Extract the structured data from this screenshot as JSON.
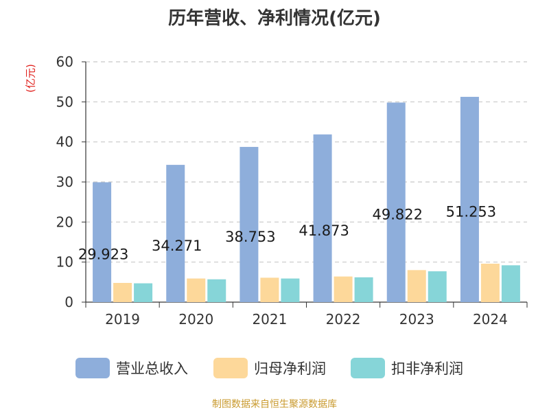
{
  "chart_data": {
    "type": "bar",
    "title": "历年营收、净利情况(亿元)",
    "unit_label": "(亿元)",
    "categories": [
      "2019",
      "2020",
      "2021",
      "2022",
      "2023",
      "2024"
    ],
    "series": [
      {
        "name": "营业总收入",
        "color": "#8eaedb",
        "values": [
          29.923,
          34.271,
          38.753,
          41.873,
          49.822,
          51.253
        ],
        "labels": [
          "29.923",
          "34.271",
          "38.753",
          "41.873",
          "49.822",
          "51.253"
        ]
      },
      {
        "name": "归母净利润",
        "color": "#fdd89a",
        "values": [
          4.8,
          5.9,
          6.1,
          6.4,
          8.0,
          9.6
        ]
      },
      {
        "name": "扣非净利润",
        "color": "#86d5d8",
        "values": [
          4.7,
          5.7,
          5.9,
          6.2,
          7.7,
          9.2
        ]
      }
    ],
    "ylim": [
      0,
      60
    ],
    "yticks": [
      "0",
      "10",
      "20",
      "30",
      "40",
      "50",
      "60"
    ],
    "grid": true,
    "legend_position": "bottom"
  },
  "source": "制图数据来自恒生聚源数据库"
}
